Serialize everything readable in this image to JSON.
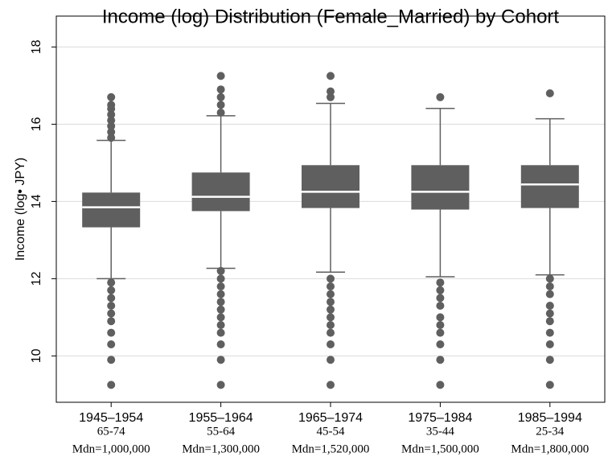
{
  "chart_data": {
    "type": "box",
    "title": "Income (log) Distribution (Female_Married) by Cohort",
    "y_label": "Income (log• JPY)",
    "categories": [
      "1945–1954",
      "1955–1964",
      "1965–1974",
      "1975–1984",
      "1985–1994"
    ],
    "age_groups": [
      "65-74",
      "55-64",
      "45-54",
      "35-44",
      "25-34"
    ],
    "median_notes": [
      "Mdn=1,000,000",
      "Mdn=1,300,000",
      "Mdn=1,520,000",
      "Mdn=1,500,000",
      "Mdn=1,800,000"
    ],
    "color": "#5f5f5f",
    "median_color": "#ffffff",
    "ylim": [
      8.8,
      18.8
    ],
    "yticks": [
      10,
      12,
      14,
      16,
      18
    ],
    "grid": true,
    "boxes": [
      {
        "min": 12.0,
        "q1": 13.33,
        "median": 13.85,
        "q3": 14.23,
        "max": 15.58,
        "outliers": [
          15.65,
          15.8,
          15.95,
          16.1,
          16.25,
          16.4,
          16.5,
          16.7,
          11.9,
          11.7,
          11.5,
          11.3,
          11.1,
          10.9,
          10.6,
          10.3,
          9.9,
          9.25
        ]
      },
      {
        "min": 12.27,
        "q1": 13.75,
        "median": 14.12,
        "q3": 14.75,
        "max": 16.22,
        "outliers": [
          16.3,
          16.5,
          16.7,
          16.9,
          17.25,
          12.2,
          12.0,
          11.8,
          11.6,
          11.4,
          11.2,
          11.0,
          10.8,
          10.6,
          10.3,
          9.9,
          9.25
        ]
      },
      {
        "min": 12.17,
        "q1": 13.83,
        "median": 14.25,
        "q3": 14.94,
        "max": 16.54,
        "outliers": [
          16.7,
          16.85,
          17.25,
          12.0,
          11.8,
          11.6,
          11.4,
          11.2,
          11.0,
          10.8,
          10.6,
          10.3,
          9.9,
          9.25
        ]
      },
      {
        "min": 12.05,
        "q1": 13.79,
        "median": 14.25,
        "q3": 14.94,
        "max": 16.41,
        "outliers": [
          16.7,
          11.9,
          11.7,
          11.5,
          11.3,
          11.0,
          10.8,
          10.6,
          10.3,
          9.9,
          9.25
        ]
      },
      {
        "min": 12.1,
        "q1": 13.83,
        "median": 14.44,
        "q3": 14.94,
        "max": 16.14,
        "outliers": [
          16.8,
          12.0,
          11.8,
          11.6,
          11.3,
          11.1,
          10.9,
          10.6,
          10.3,
          9.9,
          9.25
        ]
      }
    ]
  }
}
